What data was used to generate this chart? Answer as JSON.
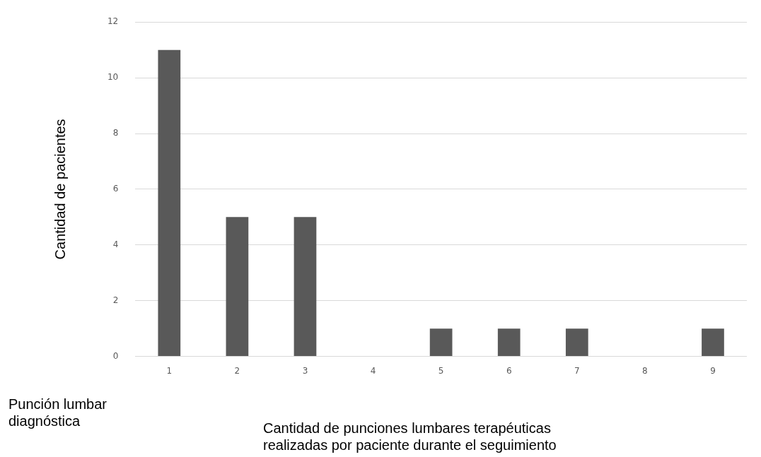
{
  "chart_data": {
    "type": "bar",
    "xlabel": "Cantidad de punciones lumbares terapéuticas realizadas por paciente durante el seguimiento",
    "ylabel": "Cantidad de pacientes",
    "annotations": [
      "Punción lumbar diagnóstica"
    ],
    "categories": [
      "1",
      "2",
      "3",
      "4",
      "5",
      "6",
      "7",
      "8",
      "9"
    ],
    "values": [
      11,
      5,
      5,
      0,
      1,
      1,
      1,
      0,
      1
    ],
    "color": "#595959",
    "ylim": [
      0,
      12
    ],
    "yticks": [
      0,
      2,
      4,
      6,
      8,
      10,
      12
    ],
    "grid": "y",
    "legend": false
  }
}
